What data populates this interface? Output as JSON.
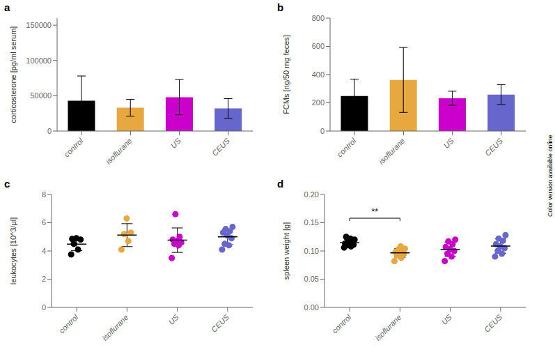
{
  "annotation": "Color version available online",
  "chart_data": [
    {
      "type": "bar",
      "title": "a",
      "categories": [
        "control",
        "isoflurane",
        "US",
        "CEUS"
      ],
      "values": [
        43000,
        33000,
        48000,
        32000
      ],
      "errors": [
        35000,
        12000,
        25000,
        14000
      ],
      "colors": [
        "#000000",
        "#E8A840",
        "#CC00CC",
        "#6666CC"
      ],
      "ylabel": "corticosterone [pg/ml serum]",
      "ylim": [
        0,
        160000
      ],
      "yticks": [
        0,
        50000,
        100000,
        150000
      ]
    },
    {
      "type": "bar",
      "title": "b",
      "categories": [
        "control",
        "isoflurane",
        "US",
        "CEUS"
      ],
      "values": [
        248,
        362,
        232,
        258
      ],
      "errors": [
        120,
        230,
        50,
        70
      ],
      "colors": [
        "#000000",
        "#E8A840",
        "#CC00CC",
        "#6666CC"
      ],
      "ylabel": "FCMs [ng/50 mg feces]",
      "ylim": [
        0,
        800
      ],
      "yticks": [
        0,
        200,
        400,
        600,
        800
      ]
    },
    {
      "type": "scatter",
      "title": "c",
      "categories": [
        "control",
        "isoflurane",
        "US",
        "CEUS"
      ],
      "colors": [
        "#000000",
        "#E8A840",
        "#CC00CC",
        "#6666CC"
      ],
      "values": [
        [
          3.75,
          4.1,
          4.5,
          4.8,
          4.9,
          4.85
        ],
        [
          4.1,
          4.7,
          5.2,
          5.3,
          6.3
        ],
        [
          3.5,
          4.4,
          4.5,
          4.6,
          4.7,
          4.8,
          5.0,
          6.6
        ],
        [
          4.1,
          4.4,
          4.5,
          4.9,
          5.1,
          5.3,
          5.4,
          5.55,
          5.7
        ]
      ],
      "means": [
        4.4833,
        5.12,
        4.7625,
        4.9944
      ],
      "errors": [
        0.4676,
        0.8136,
        0.8667,
        0.557
      ],
      "ylabel": "leukocytes [10^3/μl]",
      "ylim": [
        0,
        8
      ],
      "yticks": [
        0,
        2,
        4,
        6,
        8
      ]
    },
    {
      "type": "scatter",
      "title": "d",
      "categories": [
        "control",
        "isoflurane",
        "US",
        "CEUS"
      ],
      "colors": [
        "#000000",
        "#E8A840",
        "#CC00CC",
        "#6666CC"
      ],
      "values": [
        [
          0.106,
          0.108,
          0.11,
          0.111,
          0.112,
          0.113,
          0.116,
          0.118,
          0.12,
          0.122,
          0.125
        ],
        [
          0.082,
          0.088,
          0.092,
          0.095,
          0.097,
          0.098,
          0.1,
          0.102,
          0.104,
          0.108
        ],
        [
          0.082,
          0.09,
          0.095,
          0.1,
          0.103,
          0.107,
          0.112,
          0.117,
          0.12
        ],
        [
          0.09,
          0.095,
          0.1,
          0.105,
          0.108,
          0.112,
          0.118,
          0.122,
          0.128
        ]
      ],
      "means": [
        0.11464,
        0.0966,
        0.10289,
        0.10867
      ],
      "errors": [
        0.006054,
        0.007734,
        0.012574,
        0.012619
      ],
      "ylabel": "spleen weight [g]",
      "ylim": [
        0,
        0.2
      ],
      "yticks": [
        {
          "value": 0,
          "label": "0.00"
        },
        0.05,
        {
          "value": 0.1,
          "label": "0.10"
        },
        0.15,
        {
          "value": 0.2,
          "label": "0.20"
        }
      ],
      "annotations": [
        {
          "text": "**",
          "x1": "control",
          "x2": "isoflurane",
          "y": 0.158
        }
      ]
    }
  ]
}
